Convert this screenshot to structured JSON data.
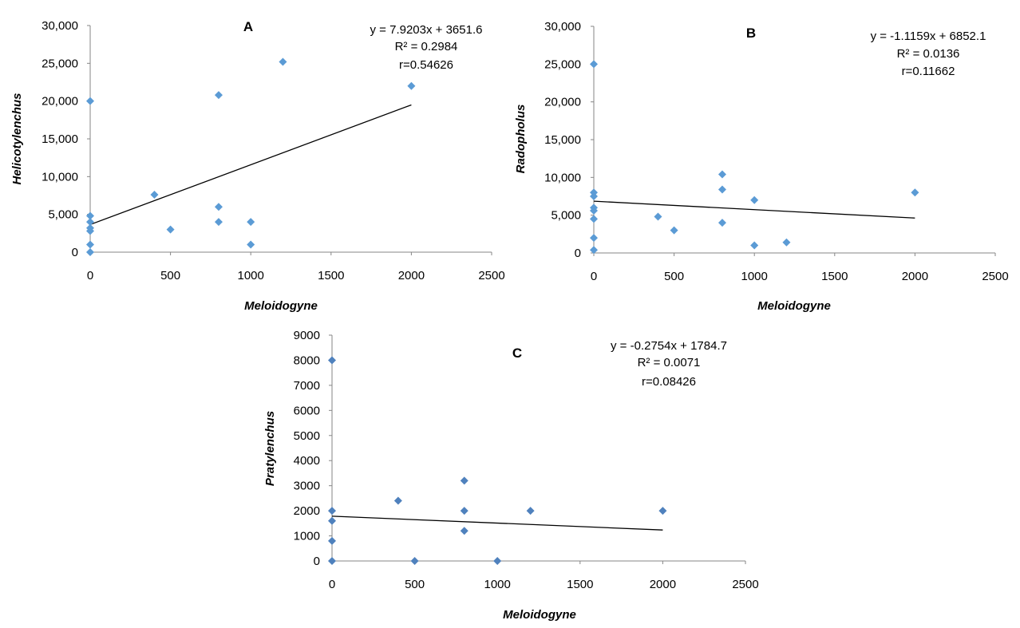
{
  "chart_data": [
    {
      "type": "scatter",
      "title": "A",
      "xlabel": "Meloidogyne",
      "ylabel": "Helicotylenchus",
      "xlim": [
        0,
        2500
      ],
      "ylim": [
        0,
        30000
      ],
      "xticks": [
        "0",
        "500",
        "1000",
        "1500",
        "2000",
        "2500"
      ],
      "yticks": [
        "0",
        "5,000",
        "10,000",
        "15,000",
        "20,000",
        "25,000",
        "30,000"
      ],
      "grid": false,
      "marker_color": "#5B9BD5",
      "points": [
        {
          "x": 0,
          "y": 20000
        },
        {
          "x": 0,
          "y": 4800
        },
        {
          "x": 0,
          "y": 4000
        },
        {
          "x": 0,
          "y": 3200
        },
        {
          "x": 0,
          "y": 2800
        },
        {
          "x": 0,
          "y": 1000
        },
        {
          "x": 0,
          "y": 0
        },
        {
          "x": 400,
          "y": 7600
        },
        {
          "x": 500,
          "y": 3000
        },
        {
          "x": 800,
          "y": 20800
        },
        {
          "x": 800,
          "y": 6000
        },
        {
          "x": 800,
          "y": 4000
        },
        {
          "x": 1000,
          "y": 4000
        },
        {
          "x": 1000,
          "y": 1000
        },
        {
          "x": 1200,
          "y": 25200
        },
        {
          "x": 2000,
          "y": 22000
        }
      ],
      "trendline": {
        "slope": 7.9203,
        "intercept": 3651.6,
        "x_range": [
          0,
          2000
        ]
      },
      "annotations": [
        "y = 7.9203x + 3651.6",
        "R² = 0.2984",
        "r=0.54626"
      ]
    },
    {
      "type": "scatter",
      "title": "B",
      "xlabel": "Meloidogyne",
      "ylabel": "Radopholus",
      "xlim": [
        0,
        2500
      ],
      "ylim": [
        0,
        30000
      ],
      "xticks": [
        "0",
        "500",
        "1000",
        "1500",
        "2000",
        "2500"
      ],
      "yticks": [
        "0",
        "5,000",
        "10,000",
        "15,000",
        "20,000",
        "25,000",
        "30,000"
      ],
      "grid": false,
      "marker_color": "#5B9BD5",
      "points": [
        {
          "x": 0,
          "y": 25000
        },
        {
          "x": 0,
          "y": 8000
        },
        {
          "x": 0,
          "y": 7500
        },
        {
          "x": 0,
          "y": 6000
        },
        {
          "x": 0,
          "y": 5600
        },
        {
          "x": 0,
          "y": 4500
        },
        {
          "x": 0,
          "y": 2000
        },
        {
          "x": 0,
          "y": 400
        },
        {
          "x": 400,
          "y": 4800
        },
        {
          "x": 500,
          "y": 3000
        },
        {
          "x": 800,
          "y": 10400
        },
        {
          "x": 800,
          "y": 8400
        },
        {
          "x": 800,
          "y": 4000
        },
        {
          "x": 1000,
          "y": 7000
        },
        {
          "x": 1000,
          "y": 1000
        },
        {
          "x": 1200,
          "y": 1400
        },
        {
          "x": 2000,
          "y": 8000
        }
      ],
      "trendline": {
        "slope": -1.1159,
        "intercept": 6852.1,
        "x_range": [
          0,
          2000
        ]
      },
      "annotations": [
        "y = -1.1159x + 6852.1",
        "R² = 0.0136",
        "r=0.11662"
      ]
    },
    {
      "type": "scatter",
      "title": "C",
      "xlabel": "Meloidogyne",
      "ylabel": "Pratylenchus",
      "xlim": [
        0,
        2500
      ],
      "ylim": [
        0,
        9000
      ],
      "xticks": [
        "0",
        "500",
        "1000",
        "1500",
        "2000",
        "2500"
      ],
      "yticks": [
        "0",
        "1000",
        "2000",
        "3000",
        "4000",
        "5000",
        "6000",
        "7000",
        "8000",
        "9000"
      ],
      "grid": false,
      "marker_color": "#4F81BD",
      "points": [
        {
          "x": 0,
          "y": 8000
        },
        {
          "x": 0,
          "y": 2000
        },
        {
          "x": 0,
          "y": 1600
        },
        {
          "x": 0,
          "y": 800
        },
        {
          "x": 0,
          "y": 0
        },
        {
          "x": 400,
          "y": 2400
        },
        {
          "x": 500,
          "y": 0
        },
        {
          "x": 800,
          "y": 3200
        },
        {
          "x": 800,
          "y": 2000
        },
        {
          "x": 800,
          "y": 1200
        },
        {
          "x": 1000,
          "y": 0
        },
        {
          "x": 1200,
          "y": 2000
        },
        {
          "x": 2000,
          "y": 2000
        }
      ],
      "trendline": {
        "slope": -0.2754,
        "intercept": 1784.7,
        "x_range": [
          0,
          2000
        ]
      },
      "annotations": [
        "y = -0.2754x + 1784.7",
        "R² = 0.0071",
        "r=0.08426"
      ]
    }
  ]
}
